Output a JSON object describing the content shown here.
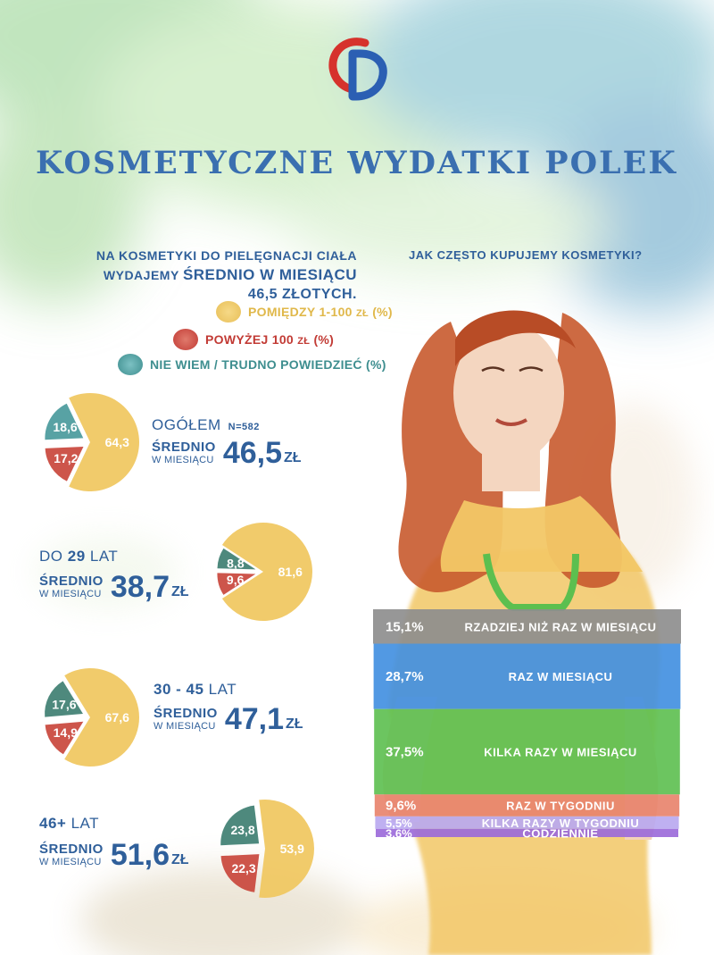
{
  "title": "KOSMETYCZNE WYDATKI POLEK",
  "intro": {
    "line1": "NA KOSMETYKI DO PIELĘGNACJI CIAŁA",
    "line2_prefix": "WYDAJEMY",
    "line2_emphasis": "ŚREDNIO W MIESIĄCU",
    "line3": "46,5 ZŁOTYCH."
  },
  "frequency_title": "JAK CZĘSTO KUPUJEMY KOSMETYKI?",
  "legend": [
    {
      "label": "POMIĘDZY 1-100",
      "unit": "ZŁ",
      "suffix": " (%)",
      "color": "#f0c75e",
      "text_color": "#e0b84a"
    },
    {
      "label": "POWYŻEJ 100",
      "unit": "ZŁ",
      "suffix": " (%)",
      "color": "#c9473c",
      "text_color": "#c23b35"
    },
    {
      "label": "NIE WIEM / TRUDNO POWIEDZIEĆ (%)",
      "unit": "",
      "suffix": "",
      "color": "#4a9a9c",
      "text_color": "#3e8e8f"
    }
  ],
  "avg_label_top": "ŚREDNIO",
  "avg_label_bottom": "W MIESIĄCU",
  "currency": "ZŁ",
  "groups": [
    {
      "title_plain": "OGÓŁEM",
      "title_bold": "",
      "title_suffix": "",
      "n": "N=582",
      "avg": "46,5"
    },
    {
      "title_plain": "DO ",
      "title_bold": "29",
      "title_suffix": " LAT",
      "n": "",
      "avg": "38,7"
    },
    {
      "title_plain": "",
      "title_bold": "30 - 45",
      "title_suffix": " LAT",
      "n": "",
      "avg": "47,1"
    },
    {
      "title_plain": "",
      "title_bold": "46+",
      "title_suffix": " LAT",
      "n": "",
      "avg": "51,6"
    }
  ],
  "chart_data": [
    {
      "type": "pie",
      "title": "OGÓŁEM",
      "categories": [
        "POMIĘDZY 1-100 ZŁ (%)",
        "POWYŻEJ 100 ZŁ (%)",
        "NIE WIEM / TRUDNO POWIEDZIEĆ (%)"
      ],
      "values": [
        64.3,
        17.2,
        18.6
      ],
      "labels": [
        "64,3",
        "17,2",
        "18,6"
      ],
      "colors": [
        "#f0c75e",
        "#c9473c",
        "#4a9a9c"
      ]
    },
    {
      "type": "pie",
      "title": "DO 29 LAT",
      "categories": [
        "POMIĘDZY 1-100 ZŁ (%)",
        "POWYŻEJ 100 ZŁ (%)",
        "NIE WIEM / TRUDNO POWIEDZIEĆ (%)"
      ],
      "values": [
        81.6,
        9.6,
        8.8
      ],
      "labels": [
        "81,6",
        "9,6",
        "8,8"
      ],
      "colors": [
        "#f0c75e",
        "#c9473c",
        "#3f7f72"
      ]
    },
    {
      "type": "pie",
      "title": "30 - 45 LAT",
      "categories": [
        "POMIĘDZY 1-100 ZŁ (%)",
        "POWYŻEJ 100 ZŁ (%)",
        "NIE WIEM / TRUDNO POWIEDZIEĆ (%)"
      ],
      "values": [
        67.6,
        14.9,
        17.6
      ],
      "labels": [
        "67,6",
        "14,9",
        "17,6"
      ],
      "colors": [
        "#f0c75e",
        "#c9473c",
        "#3f7f72"
      ]
    },
    {
      "type": "pie",
      "title": "46+ LAT",
      "categories": [
        "POMIĘDZY 1-100 ZŁ (%)",
        "POWYŻEJ 100 ZŁ (%)",
        "NIE WIEM / TRUDNO POWIEDZIEĆ (%)"
      ],
      "values": [
        53.9,
        22.3,
        23.8
      ],
      "labels": [
        "53,9",
        "22,3",
        "23,8"
      ],
      "colors": [
        "#f0c75e",
        "#c9473c",
        "#3f7f72"
      ]
    },
    {
      "type": "bar",
      "title": "JAK CZĘSTO KUPUJEMY KOSMETYKI?",
      "categories": [
        "RZADZIEJ NIŻ RAZ W MIESIĄCU",
        "RAZ W MIESIĄCU",
        "KILKA RAZY W MIESIĄCU",
        "RAZ W TYGODNIU",
        "KILKA RAZY W TYGODNIU",
        "CODZIENNIE"
      ],
      "values": [
        15.1,
        28.7,
        37.5,
        9.6,
        5.5,
        3.6
      ],
      "labels": [
        "15,1",
        "28,7",
        "37,5",
        "9,6",
        "5,5",
        "3,6"
      ],
      "unit": "%",
      "colors": [
        "#8c8c8c",
        "#3f8ee0",
        "#5cbf4f",
        "#e8826a",
        "#b8a7f0",
        "#9a68d9"
      ]
    }
  ]
}
